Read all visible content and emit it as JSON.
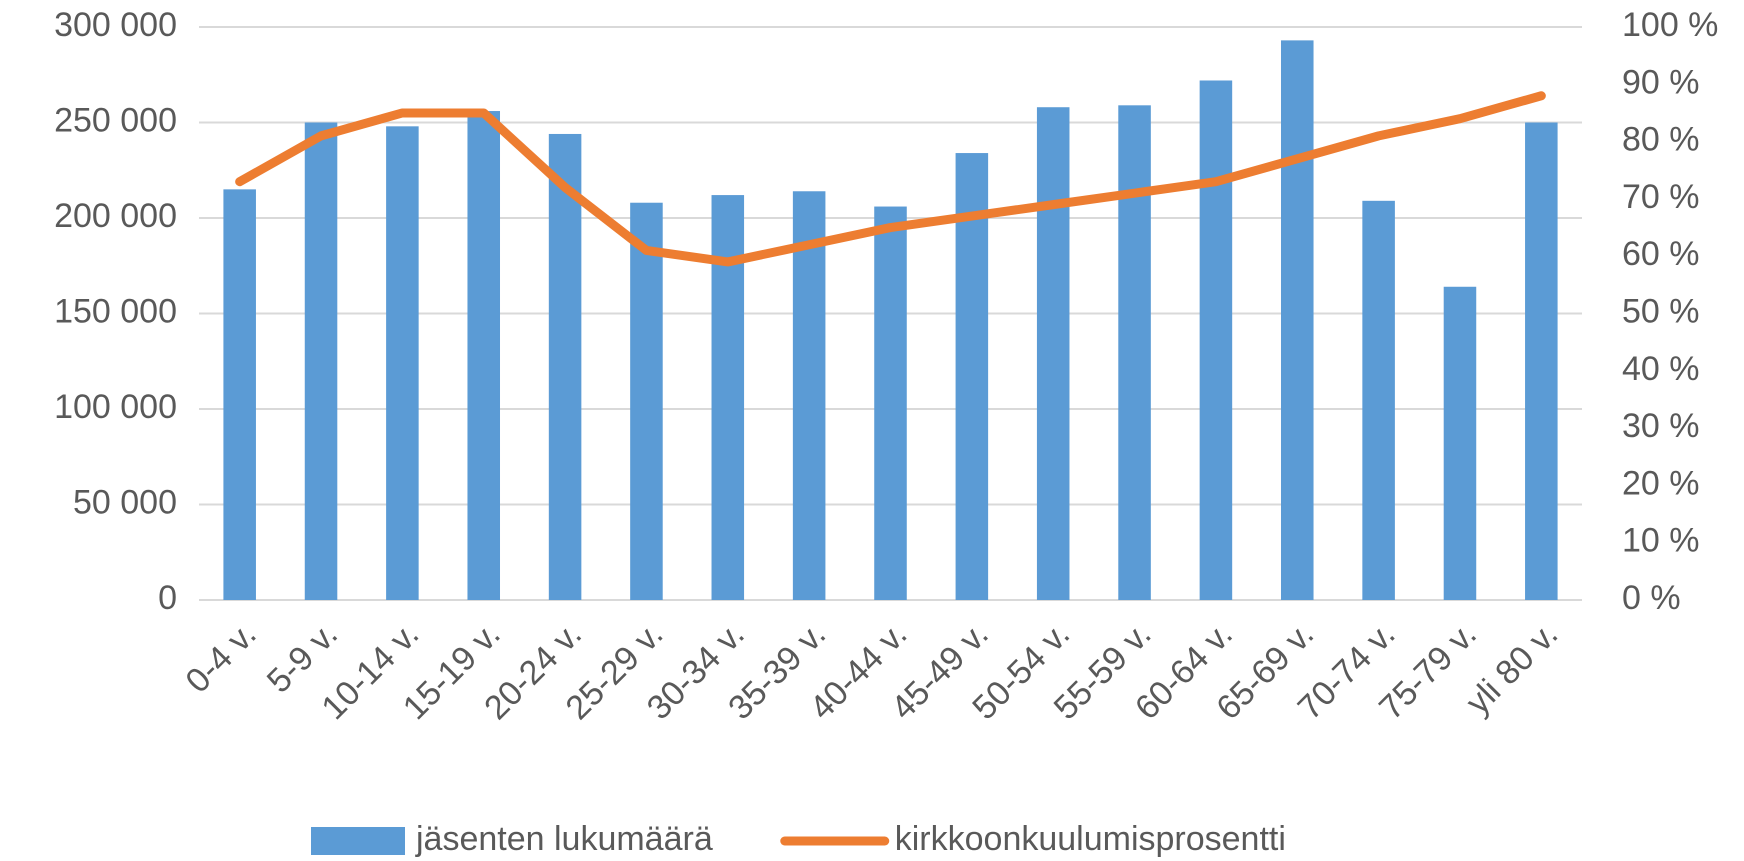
{
  "chart_data": {
    "type": "bar",
    "categories": [
      "0-4 v.",
      "5-9 v.",
      "10-14 v.",
      "15-19 v.",
      "20-24 v.",
      "25-29 v.",
      "30-34 v.",
      "35-39 v.",
      "40-44 v.",
      "45-49 v.",
      "50-54 v.",
      "55-59 v.",
      "60-64 v.",
      "65-69 v.",
      "70-74 v.",
      "75-79 v.",
      "yli 80 v."
    ],
    "series": [
      {
        "name": "jäsenten lukumäärä",
        "type": "bar",
        "color": "#5b9bd5",
        "values": [
          215000,
          250000,
          248000,
          256000,
          244000,
          208000,
          212000,
          214000,
          206000,
          234000,
          258000,
          259000,
          272000,
          293000,
          209000,
          164000,
          250000
        ]
      },
      {
        "name": "kirkkoonkuulumisprosentti",
        "type": "line",
        "axis": "y2",
        "color": "#ed7d31",
        "values": [
          73,
          81,
          85,
          85,
          72,
          61,
          59,
          62,
          65,
          67,
          69,
          71,
          73,
          77,
          81,
          84,
          88
        ]
      }
    ],
    "ylim": [
      0,
      300000
    ],
    "yticks": [
      0,
      {
        "value": 50000,
        "label": "50 000"
      },
      {
        "value": 100000,
        "label": "100 000"
      },
      {
        "value": 150000,
        "label": "150 000"
      },
      {
        "value": 200000,
        "label": "200 000"
      },
      {
        "value": 250000,
        "label": "250 000"
      },
      {
        "value": 300000,
        "label": "300 000"
      }
    ],
    "y2lim": [
      0,
      100
    ],
    "y2ticks": [
      {
        "value": 0,
        "label": "0 %"
      },
      {
        "value": 10,
        "label": "10 %"
      },
      {
        "value": 20,
        "label": "20 %"
      },
      {
        "value": 30,
        "label": "30 %"
      },
      {
        "value": 40,
        "label": "40 %"
      },
      {
        "value": 50,
        "label": "50 %"
      },
      {
        "value": 60,
        "label": "60 %"
      },
      {
        "value": 70,
        "label": "70 %"
      },
      {
        "value": 80,
        "label": "80 %"
      },
      {
        "value": 90,
        "label": "90 %"
      },
      {
        "value": 100,
        "label": "100 %"
      }
    ],
    "grid": true,
    "legend": "bottom"
  }
}
